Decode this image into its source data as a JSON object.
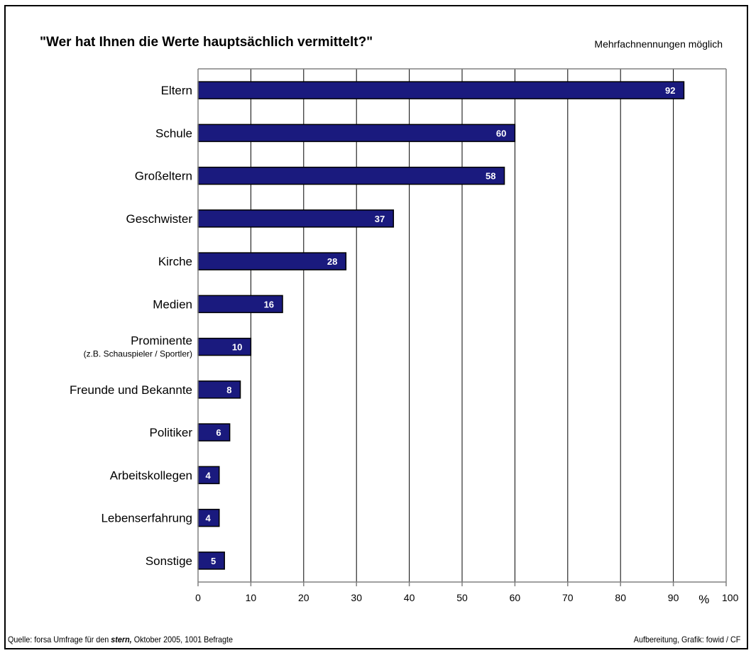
{
  "header": {
    "title": "\"Wer hat Ihnen die Werte hauptsächlich vermittelt?\"",
    "note": "Mehrfachnennungen möglich"
  },
  "footer": {
    "source_prefix": "Quelle: forsa Umfrage für den ",
    "source_emph": "stern,",
    "source_suffix": " Oktober 2005, 1001 Befragte",
    "credit": "Aufbereitung, Grafik: fowid / CF"
  },
  "chart_data": {
    "type": "bar",
    "orientation": "horizontal",
    "title": "\"Wer hat Ihnen die Werte hauptsächlich vermittelt?\"",
    "categories": [
      "Eltern",
      "Schule",
      "Großeltern",
      "Geschwister",
      "Kirche",
      "Medien",
      "Prominente",
      "Freunde und Bekannte",
      "Politiker",
      "Arbeitskollegen",
      "Lebenserfahrung",
      "Sonstige"
    ],
    "category_sublabels": [
      "",
      "",
      "",
      "",
      "",
      "",
      "(z.B. Schauspieler / Sportler)",
      "",
      "",
      "",
      "",
      ""
    ],
    "values": [
      92,
      60,
      58,
      37,
      28,
      16,
      10,
      8,
      6,
      4,
      4,
      5
    ],
    "xlim": [
      0,
      100
    ],
    "xticks": [
      "0",
      "10",
      "20",
      "30",
      "40",
      "50",
      "60",
      "70",
      "80",
      "90",
      "100"
    ],
    "unit": "%",
    "grid": true,
    "colors": {
      "bar": "#1a1a7e",
      "bar_edge": "#000000",
      "grid": "#000000",
      "axis": "#808080",
      "label": "#ffffff"
    }
  }
}
